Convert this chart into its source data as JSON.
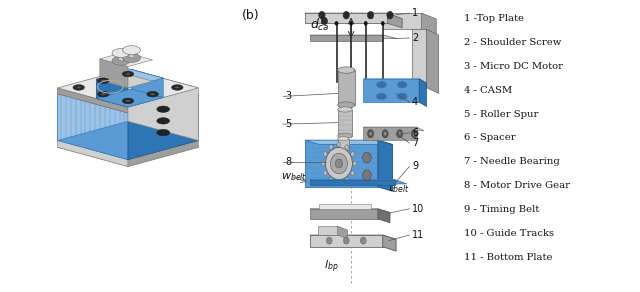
{
  "figure_label_b": "(b)",
  "part_labels": [
    "1 -Top Plate",
    "2 - Shoulder Screw",
    "3 - Micro DC Motor",
    "4 - CASM",
    "5 - Roller Spur",
    "6 - Spacer",
    "7 - Needle Bearing",
    "8 - Motor Drive Gear",
    "9 - Timing Belt",
    "10 - Guide Tracks",
    "11 - Bottom Plate"
  ],
  "bg_color": "#ffffff",
  "text_color": "#111111",
  "legend_fontsize": 7.2,
  "annot_fontsize": 7.0,
  "math_fontsize": 8.0
}
